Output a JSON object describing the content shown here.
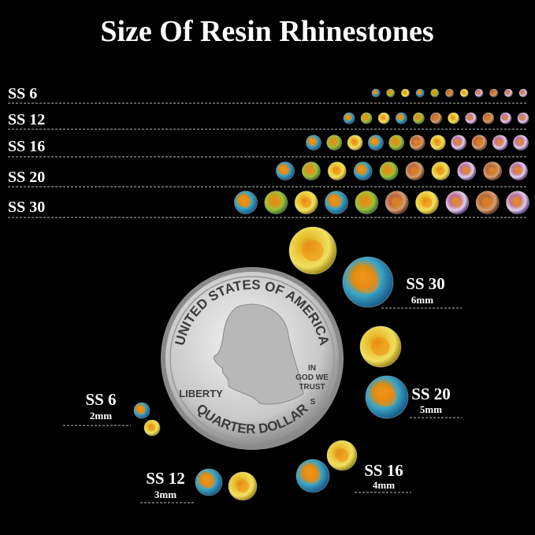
{
  "title": "Size Of Resin Rhinestones",
  "rows": [
    {
      "label": "SS 6"
    },
    {
      "label": "SS 12"
    },
    {
      "label": "SS 16"
    },
    {
      "label": "SS 20"
    },
    {
      "label": "SS 30"
    }
  ],
  "callouts": [
    {
      "label": "SS 30",
      "size": "6mm"
    },
    {
      "label": "SS 20",
      "size": "5mm"
    },
    {
      "label": "SS 16",
      "size": "4mm"
    },
    {
      "label": "SS 12",
      "size": "3mm"
    },
    {
      "label": "SS 6",
      "size": "2mm"
    }
  ],
  "coin": {
    "top": "UNITED STATES OF AMERICA",
    "left": "LIBERTY",
    "motto": [
      "IN",
      "GOD WE",
      "TRUST"
    ],
    "mint": "S",
    "bottom": "QUARTER DOLLAR"
  }
}
